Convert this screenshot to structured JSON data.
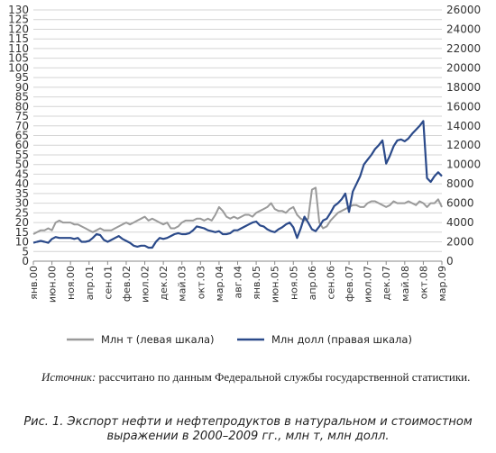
{
  "chart_data": {
    "type": "line",
    "axes": "dual",
    "y_left": {
      "ylim": [
        0,
        130
      ],
      "ticks": [
        0,
        5,
        10,
        15,
        20,
        25,
        30,
        35,
        40,
        45,
        50,
        55,
        60,
        65,
        70,
        75,
        80,
        85,
        90,
        95,
        100,
        105,
        110,
        115,
        120,
        125,
        130
      ]
    },
    "y_right": {
      "ylim": [
        0,
        26000
      ],
      "ticks": [
        0,
        2000,
        4000,
        6000,
        8000,
        10000,
        12000,
        14000,
        16000,
        18000,
        20000,
        22000,
        24000,
        26000
      ]
    },
    "x": {
      "count": 111,
      "tick_every": 5,
      "tick_labels": [
        "янв.00",
        "июн.00",
        "ноя.00",
        "апр.01",
        "сен.01",
        "фев.02",
        "июл.02",
        "дек.02",
        "май.03",
        "окт.03",
        "мар.04",
        "авг.04",
        "янв.05",
        "июн.05",
        "ноя.05",
        "апр.06",
        "сен.06",
        "фев.07",
        "июл.07",
        "дек.07",
        "май.08",
        "окт.08",
        "мар.09"
      ]
    },
    "series": [
      {
        "name": "Млн  т (левая шкала)",
        "axis": "left",
        "color": "#9a9a9a",
        "values": [
          14,
          15,
          16,
          16,
          17,
          16,
          20,
          21,
          20,
          20,
          20,
          19,
          19,
          18,
          17,
          16,
          15,
          16,
          17,
          16,
          16,
          16,
          17,
          18,
          19,
          20,
          19,
          20,
          21,
          22,
          23,
          21,
          22,
          21,
          20,
          19,
          20,
          17,
          17,
          18,
          20,
          21,
          21,
          21,
          22,
          22,
          21,
          22,
          21,
          24,
          28,
          26,
          23,
          22,
          23,
          22,
          23,
          24,
          24,
          23,
          25,
          26,
          27,
          28,
          30,
          27,
          26,
          26,
          25,
          27,
          28,
          24,
          22,
          21,
          22,
          37,
          38,
          20,
          17,
          18,
          21,
          23,
          25,
          26,
          27,
          28,
          29,
          29,
          28,
          28,
          30,
          31,
          31,
          30,
          29,
          28,
          29,
          31,
          30,
          30,
          30,
          31,
          30,
          29,
          31,
          30,
          28,
          30,
          30,
          32,
          28
        ]
      },
      {
        "name": "Млн  долл (правая шкала)",
        "axis": "right",
        "color": "#2b4a8a",
        "values": [
          1900,
          2000,
          2100,
          2000,
          1900,
          2300,
          2500,
          2400,
          2400,
          2400,
          2400,
          2300,
          2400,
          2000,
          2000,
          2100,
          2400,
          2800,
          2700,
          2200,
          2000,
          2200,
          2400,
          2600,
          2300,
          2100,
          1900,
          1600,
          1500,
          1600,
          1600,
          1400,
          1400,
          2000,
          2400,
          2300,
          2400,
          2600,
          2800,
          2900,
          2800,
          2800,
          2900,
          3200,
          3600,
          3500,
          3400,
          3200,
          3100,
          3000,
          3100,
          2800,
          2800,
          2900,
          3200,
          3200,
          3400,
          3600,
          3800,
          4000,
          4100,
          3700,
          3600,
          3300,
          3100,
          3000,
          3300,
          3500,
          3800,
          4000,
          3500,
          2400,
          3400,
          4600,
          4000,
          3300,
          3100,
          3600,
          4200,
          4400,
          5000,
          5700,
          6000,
          6400,
          7000,
          5100,
          7200,
          8000,
          8800,
          10000,
          10500,
          11000,
          11600,
          12000,
          12500,
          10100,
          10900,
          11900,
          12500,
          12600,
          12400,
          12700,
          13200,
          13600,
          14000,
          14500,
          8600,
          8200,
          8800,
          9200,
          8800
        ]
      }
    ],
    "legend_position": "bottom",
    "grid": "horizontal"
  },
  "source_note": {
    "label": "Источник:",
    "text": " рассчитано по данным Федеральной службы государственной статистики."
  },
  "caption": {
    "line1": "Рис. 1. Экспорт нефти и нефтепродуктов в натуральном и стоимостном",
    "line2": "выражении в 2000–2009 гг., млн т, млн долл."
  }
}
